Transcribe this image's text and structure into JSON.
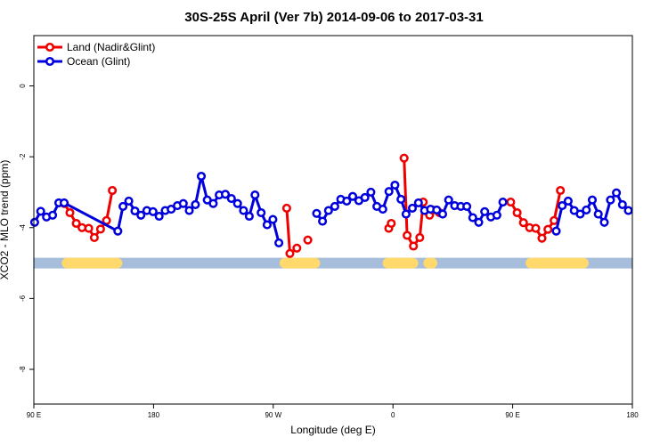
{
  "chart_data": {
    "type": "line",
    "title": "30S-25S April (Ver 7b)   2014-09-06 to 2017-03-31",
    "xlabel": "Longitude (deg E)",
    "ylabel": "XCO2 - MLO trend (ppm)",
    "xlim": [
      90,
      450
    ],
    "ylim": [
      -8.98,
      1.42
    ],
    "x_ticks": [
      {
        "value": 90,
        "label": "90 E"
      },
      {
        "value": 162,
        "label": "180"
      },
      {
        "value": 234,
        "label": "90 W"
      },
      {
        "value": 306,
        "label": "0"
      },
      {
        "value": 378,
        "label": "90 E"
      },
      {
        "value": 450,
        "label": "180"
      }
    ],
    "y_ticks": [
      {
        "value": 0,
        "label": "0"
      },
      {
        "value": -2,
        "label": "-2"
      },
      {
        "value": -4,
        "label": "-4"
      },
      {
        "value": -6,
        "label": "-6"
      },
      {
        "value": -8,
        "label": "-8"
      }
    ],
    "grid": false,
    "legend_position": "top-left",
    "series": [
      {
        "name": "Land (Nadir&Glint)",
        "color": "#ee0000",
        "segments": [
          [
            [
              108.3,
              -3.32
            ],
            [
              111.7,
              -3.58
            ],
            [
              115.5,
              -3.88
            ],
            [
              119.0,
              -4.0
            ],
            [
              123.0,
              -4.02
            ],
            [
              126.4,
              -4.28
            ],
            [
              130.1,
              -4.04
            ],
            [
              133.7,
              -3.8
            ],
            [
              137.2,
              -2.95
            ]
          ],
          [
            [
              242.1,
              -3.45
            ],
            [
              244.0,
              -4.73
            ],
            [
              248.2,
              -4.58
            ]
          ],
          [
            [
              254.8,
              -4.35
            ]
          ],
          [
            [
              303.5,
              -4.02
            ],
            [
              305.0,
              -3.88
            ]
          ],
          [
            [
              312.7,
              -2.04
            ],
            [
              314.5,
              -4.22
            ],
            [
              318.3,
              -4.52
            ],
            [
              322.1,
              -4.28
            ],
            [
              324.2,
              -3.28
            ]
          ],
          [
            [
              328.0,
              -3.65
            ],
            [
              329.8,
              -3.5
            ]
          ],
          [
            [
              334.0,
              -3.58
            ]
          ],
          [
            [
              376.8,
              -3.28
            ],
            [
              380.7,
              -3.58
            ],
            [
              384.5,
              -3.86
            ],
            [
              388.2,
              -4.0
            ],
            [
              391.9,
              -4.02
            ],
            [
              395.6,
              -4.3
            ],
            [
              399.2,
              -4.05
            ],
            [
              402.9,
              -3.8
            ],
            [
              406.7,
              -2.95
            ]
          ]
        ]
      },
      {
        "name": "Ocean (Glint)",
        "color": "#0000dd",
        "segments": [
          [
            [
              90.5,
              -3.85
            ],
            [
              94.1,
              -3.54
            ],
            [
              97.6,
              -3.7
            ],
            [
              101.3,
              -3.65
            ],
            [
              105.0,
              -3.3
            ],
            [
              108.2,
              -3.3
            ],
            [
              140.5,
              -4.1
            ],
            [
              143.6,
              -3.4
            ],
            [
              147.1,
              -3.25
            ],
            [
              150.8,
              -3.53
            ],
            [
              154.4,
              -3.65
            ],
            [
              158.0,
              -3.52
            ],
            [
              161.7,
              -3.55
            ],
            [
              165.4,
              -3.68
            ],
            [
              169.0,
              -3.52
            ],
            [
              172.6,
              -3.48
            ],
            [
              176.3,
              -3.38
            ],
            [
              179.9,
              -3.32
            ],
            [
              183.5,
              -3.52
            ],
            [
              187.2,
              -3.35
            ],
            [
              190.7,
              -2.55
            ],
            [
              194.3,
              -3.22
            ],
            [
              197.9,
              -3.32
            ],
            [
              201.5,
              -3.08
            ],
            [
              205.2,
              -3.06
            ],
            [
              208.8,
              -3.18
            ],
            [
              212.5,
              -3.32
            ],
            [
              216.1,
              -3.52
            ],
            [
              219.6,
              -3.68
            ],
            [
              223.0,
              -3.08
            ],
            [
              226.7,
              -3.58
            ],
            [
              230.3,
              -3.92
            ],
            [
              233.8,
              -3.77
            ],
            [
              237.4,
              -4.43
            ]
          ],
          [
            [
              260.1,
              -3.6
            ],
            [
              263.6,
              -3.82
            ],
            [
              267.2,
              -3.52
            ],
            [
              271.0,
              -3.4
            ],
            [
              274.6,
              -3.2
            ],
            [
              278.2,
              -3.25
            ],
            [
              281.8,
              -3.12
            ],
            [
              285.5,
              -3.24
            ],
            [
              289.1,
              -3.15
            ],
            [
              292.7,
              -3.0
            ],
            [
              296.3,
              -3.4
            ],
            [
              299.9,
              -3.48
            ],
            [
              303.6,
              -2.98
            ],
            [
              307.2,
              -2.8
            ],
            [
              310.8,
              -3.2
            ],
            [
              313.9,
              -3.62
            ],
            [
              317.7,
              -3.45
            ],
            [
              321.3,
              -3.3
            ],
            [
              325.0,
              -3.52
            ],
            [
              328.6,
              -3.48
            ],
            [
              332.3,
              -3.5
            ],
            [
              335.9,
              -3.62
            ],
            [
              339.5,
              -3.22
            ],
            [
              343.1,
              -3.38
            ],
            [
              346.8,
              -3.4
            ],
            [
              350.4,
              -3.4
            ],
            [
              354.0,
              -3.72
            ],
            [
              357.6,
              -3.85
            ],
            [
              361.2,
              -3.55
            ],
            [
              364.9,
              -3.7
            ],
            [
              368.5,
              -3.65
            ],
            [
              372.1,
              -3.28
            ]
          ],
          [
            [
              404.2,
              -4.1
            ],
            [
              407.8,
              -3.38
            ],
            [
              411.4,
              -3.25
            ],
            [
              415.0,
              -3.52
            ],
            [
              418.6,
              -3.62
            ],
            [
              422.3,
              -3.5
            ],
            [
              425.9,
              -3.22
            ],
            [
              429.5,
              -3.62
            ],
            [
              433.1,
              -3.85
            ],
            [
              436.8,
              -3.22
            ],
            [
              440.4,
              -3.02
            ],
            [
              444.0,
              -3.35
            ],
            [
              447.6,
              -3.52
            ]
          ]
        ]
      }
    ],
    "surface_band": {
      "y": -5.0,
      "ocean_color": "#a6bddb",
      "land_color": "#ffd96b",
      "land_ranges": [
        [
          110.0,
          140.0
        ],
        [
          241.0,
          259.0
        ],
        [
          303.0,
          318.0
        ],
        [
          327.5,
          329.5
        ],
        [
          389.0,
          420.5
        ]
      ]
    }
  }
}
